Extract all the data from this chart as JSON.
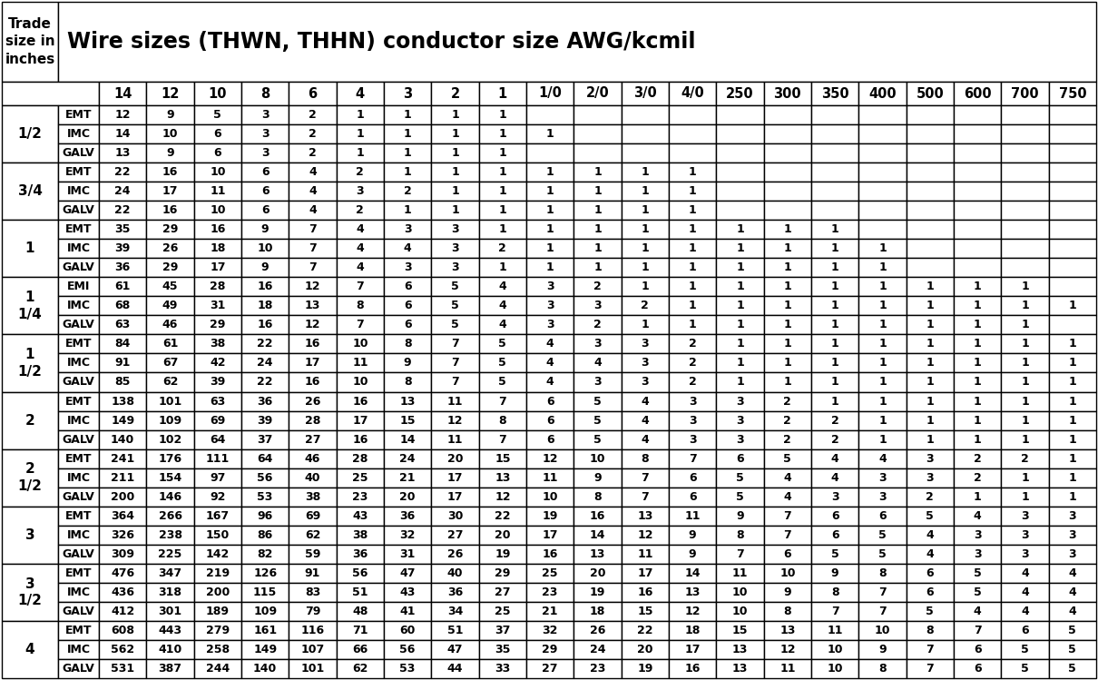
{
  "title": "Wire sizes (THWN, THHN) conductor size AWG/kcmil",
  "col_headers": [
    "14",
    "12",
    "10",
    "8",
    "6",
    "4",
    "3",
    "2",
    "1",
    "1/0",
    "2/0",
    "3/0",
    "4/0",
    "250",
    "300",
    "350",
    "400",
    "500",
    "600",
    "700",
    "750"
  ],
  "row_groups": [
    {
      "trade_size": "1/2",
      "rows": [
        {
          "type": "EMT",
          "values": [
            "12",
            "9",
            "5",
            "3",
            "2",
            "1",
            "1",
            "1",
            "1",
            "",
            "",
            "",
            "",
            "",
            "",
            "",
            "",
            "",
            "",
            "",
            ""
          ]
        },
        {
          "type": "IMC",
          "values": [
            "14",
            "10",
            "6",
            "3",
            "2",
            "1",
            "1",
            "1",
            "1",
            "1",
            "",
            "",
            "",
            "",
            "",
            "",
            "",
            "",
            "",
            "",
            ""
          ]
        },
        {
          "type": "GALV",
          "values": [
            "13",
            "9",
            "6",
            "3",
            "2",
            "1",
            "1",
            "1",
            "1",
            "",
            "",
            "",
            "",
            "",
            "",
            "",
            "",
            "",
            "",
            "",
            ""
          ]
        }
      ]
    },
    {
      "trade_size": "3/4",
      "rows": [
        {
          "type": "EMT",
          "values": [
            "22",
            "16",
            "10",
            "6",
            "4",
            "2",
            "1",
            "1",
            "1",
            "1",
            "1",
            "1",
            "1",
            "",
            "",
            "",
            "",
            "",
            "",
            "",
            ""
          ]
        },
        {
          "type": "IMC",
          "values": [
            "24",
            "17",
            "11",
            "6",
            "4",
            "3",
            "2",
            "1",
            "1",
            "1",
            "1",
            "1",
            "1",
            "",
            "",
            "",
            "",
            "",
            "",
            "",
            ""
          ]
        },
        {
          "type": "GALV",
          "values": [
            "22",
            "16",
            "10",
            "6",
            "4",
            "2",
            "1",
            "1",
            "1",
            "1",
            "1",
            "1",
            "1",
            "",
            "",
            "",
            "",
            "",
            "",
            "",
            ""
          ]
        }
      ]
    },
    {
      "trade_size": "1",
      "rows": [
        {
          "type": "EMT",
          "values": [
            "35",
            "29",
            "16",
            "9",
            "7",
            "4",
            "3",
            "3",
            "1",
            "1",
            "1",
            "1",
            "1",
            "1",
            "1",
            "1",
            "",
            "",
            "",
            "",
            ""
          ]
        },
        {
          "type": "IMC",
          "values": [
            "39",
            "26",
            "18",
            "10",
            "7",
            "4",
            "4",
            "3",
            "2",
            "1",
            "1",
            "1",
            "1",
            "1",
            "1",
            "1",
            "1",
            "",
            "",
            "",
            ""
          ]
        },
        {
          "type": "GALV",
          "values": [
            "36",
            "29",
            "17",
            "9",
            "7",
            "4",
            "3",
            "3",
            "1",
            "1",
            "1",
            "1",
            "1",
            "1",
            "1",
            "1",
            "1",
            "",
            "",
            "",
            ""
          ]
        }
      ]
    },
    {
      "trade_size": "1\n1/4",
      "rows": [
        {
          "type": "EMI",
          "values": [
            "61",
            "45",
            "28",
            "16",
            "12",
            "7",
            "6",
            "5",
            "4",
            "3",
            "2",
            "1",
            "1",
            "1",
            "1",
            "1",
            "1",
            "1",
            "1",
            "1",
            ""
          ]
        },
        {
          "type": "IMC",
          "values": [
            "68",
            "49",
            "31",
            "18",
            "13",
            "8",
            "6",
            "5",
            "4",
            "3",
            "3",
            "2",
            "1",
            "1",
            "1",
            "1",
            "1",
            "1",
            "1",
            "1",
            "1"
          ]
        },
        {
          "type": "GALV",
          "values": [
            "63",
            "46",
            "29",
            "16",
            "12",
            "7",
            "6",
            "5",
            "4",
            "3",
            "2",
            "1",
            "1",
            "1",
            "1",
            "1",
            "1",
            "1",
            "1",
            "1",
            ""
          ]
        }
      ]
    },
    {
      "trade_size": "1\n1/2",
      "rows": [
        {
          "type": "EMT",
          "values": [
            "84",
            "61",
            "38",
            "22",
            "16",
            "10",
            "8",
            "7",
            "5",
            "4",
            "3",
            "3",
            "2",
            "1",
            "1",
            "1",
            "1",
            "1",
            "1",
            "1",
            "1"
          ]
        },
        {
          "type": "IMC",
          "values": [
            "91",
            "67",
            "42",
            "24",
            "17",
            "11",
            "9",
            "7",
            "5",
            "4",
            "4",
            "3",
            "2",
            "1",
            "1",
            "1",
            "1",
            "1",
            "1",
            "1",
            "1"
          ]
        },
        {
          "type": "GALV",
          "values": [
            "85",
            "62",
            "39",
            "22",
            "16",
            "10",
            "8",
            "7",
            "5",
            "4",
            "3",
            "3",
            "2",
            "1",
            "1",
            "1",
            "1",
            "1",
            "1",
            "1",
            "1"
          ]
        }
      ]
    },
    {
      "trade_size": "2",
      "rows": [
        {
          "type": "EMT",
          "values": [
            "138",
            "101",
            "63",
            "36",
            "26",
            "16",
            "13",
            "11",
            "7",
            "6",
            "5",
            "4",
            "3",
            "3",
            "2",
            "1",
            "1",
            "1",
            "1",
            "1",
            "1"
          ]
        },
        {
          "type": "IMC",
          "values": [
            "149",
            "109",
            "69",
            "39",
            "28",
            "17",
            "15",
            "12",
            "8",
            "6",
            "5",
            "4",
            "3",
            "3",
            "2",
            "2",
            "1",
            "1",
            "1",
            "1",
            "1"
          ]
        },
        {
          "type": "GALV",
          "values": [
            "140",
            "102",
            "64",
            "37",
            "27",
            "16",
            "14",
            "11",
            "7",
            "6",
            "5",
            "4",
            "3",
            "3",
            "2",
            "2",
            "1",
            "1",
            "1",
            "1",
            "1"
          ]
        }
      ]
    },
    {
      "trade_size": "2\n1/2",
      "rows": [
        {
          "type": "EMT",
          "values": [
            "241",
            "176",
            "111",
            "64",
            "46",
            "28",
            "24",
            "20",
            "15",
            "12",
            "10",
            "8",
            "7",
            "6",
            "5",
            "4",
            "4",
            "3",
            "2",
            "2",
            "1"
          ]
        },
        {
          "type": "IMC",
          "values": [
            "211",
            "154",
            "97",
            "56",
            "40",
            "25",
            "21",
            "17",
            "13",
            "11",
            "9",
            "7",
            "6",
            "5",
            "4",
            "4",
            "3",
            "3",
            "2",
            "1",
            "1"
          ]
        },
        {
          "type": "GALV",
          "values": [
            "200",
            "146",
            "92",
            "53",
            "38",
            "23",
            "20",
            "17",
            "12",
            "10",
            "8",
            "7",
            "6",
            "5",
            "4",
            "3",
            "3",
            "2",
            "1",
            "1",
            "1"
          ]
        }
      ]
    },
    {
      "trade_size": "3",
      "rows": [
        {
          "type": "EMT",
          "values": [
            "364",
            "266",
            "167",
            "96",
            "69",
            "43",
            "36",
            "30",
            "22",
            "19",
            "16",
            "13",
            "11",
            "9",
            "7",
            "6",
            "6",
            "5",
            "4",
            "3",
            "3"
          ]
        },
        {
          "type": "IMC",
          "values": [
            "326",
            "238",
            "150",
            "86",
            "62",
            "38",
            "32",
            "27",
            "20",
            "17",
            "14",
            "12",
            "9",
            "8",
            "7",
            "6",
            "5",
            "4",
            "3",
            "3",
            "3"
          ]
        },
        {
          "type": "GALV",
          "values": [
            "309",
            "225",
            "142",
            "82",
            "59",
            "36",
            "31",
            "26",
            "19",
            "16",
            "13",
            "11",
            "9",
            "7",
            "6",
            "5",
            "5",
            "4",
            "3",
            "3",
            "3"
          ]
        }
      ]
    },
    {
      "trade_size": "3\n1/2",
      "rows": [
        {
          "type": "EMT",
          "values": [
            "476",
            "347",
            "219",
            "126",
            "91",
            "56",
            "47",
            "40",
            "29",
            "25",
            "20",
            "17",
            "14",
            "11",
            "10",
            "9",
            "8",
            "6",
            "5",
            "4",
            "4"
          ]
        },
        {
          "type": "IMC",
          "values": [
            "436",
            "318",
            "200",
            "115",
            "83",
            "51",
            "43",
            "36",
            "27",
            "23",
            "19",
            "16",
            "13",
            "10",
            "9",
            "8",
            "7",
            "6",
            "5",
            "4",
            "4"
          ]
        },
        {
          "type": "GALV",
          "values": [
            "412",
            "301",
            "189",
            "109",
            "79",
            "48",
            "41",
            "34",
            "25",
            "21",
            "18",
            "15",
            "12",
            "10",
            "8",
            "7",
            "7",
            "5",
            "4",
            "4",
            "4"
          ]
        }
      ]
    },
    {
      "trade_size": "4",
      "rows": [
        {
          "type": "EMT",
          "values": [
            "608",
            "443",
            "279",
            "161",
            "116",
            "71",
            "60",
            "51",
            "37",
            "32",
            "26",
            "22",
            "18",
            "15",
            "13",
            "11",
            "10",
            "8",
            "7",
            "6",
            "5"
          ]
        },
        {
          "type": "IMC",
          "values": [
            "562",
            "410",
            "258",
            "149",
            "107",
            "66",
            "56",
            "47",
            "35",
            "29",
            "24",
            "20",
            "17",
            "13",
            "12",
            "10",
            "9",
            "7",
            "6",
            "5",
            "5"
          ]
        },
        {
          "type": "GALV",
          "values": [
            "531",
            "387",
            "244",
            "140",
            "101",
            "62",
            "53",
            "44",
            "33",
            "27",
            "23",
            "19",
            "16",
            "13",
            "11",
            "10",
            "8",
            "7",
            "6",
            "5",
            "5"
          ]
        }
      ]
    }
  ],
  "bg_color": "#ffffff",
  "border_color": "#000000",
  "text_color": "#000000",
  "title_fontsize": 17,
  "cell_fontsize": 9,
  "header_fontsize": 10.5,
  "trade_fontsize": 11,
  "fig_width": 12.1,
  "fig_height": 7.49,
  "dpi": 100
}
